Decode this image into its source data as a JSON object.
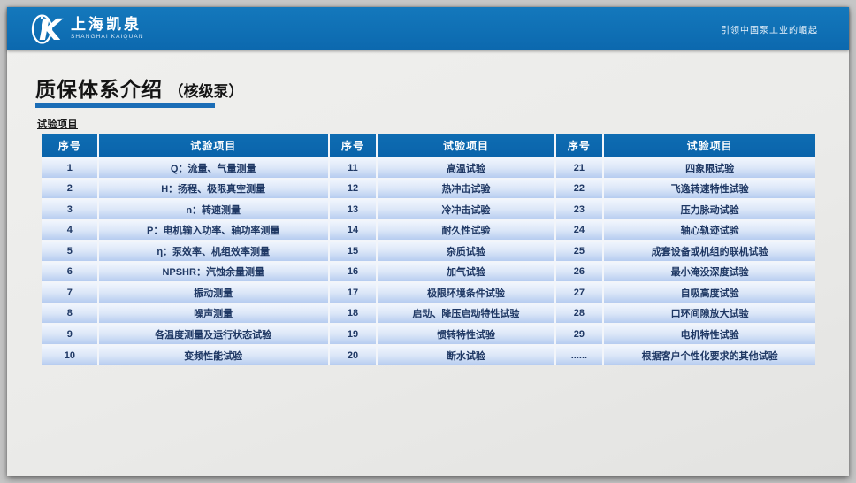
{
  "topbar": {
    "logo_cn": "上海凯泉",
    "logo_en": "SHANGHAI KAIQUAN",
    "slogan": "引领中国泵工业的崛起"
  },
  "title": {
    "main": "质保体系介绍",
    "suffix": "（核级泵）"
  },
  "section_label": "试验项目",
  "table": {
    "headers": [
      "序号",
      "试验项目",
      "序号",
      "试验项目",
      "序号",
      "试验项目"
    ],
    "rows": [
      [
        "1",
        "Q：流量、气量测量",
        "11",
        "高温试验",
        "21",
        "四象限试验"
      ],
      [
        "2",
        "H：扬程、极限真空测量",
        "12",
        "热冲击试验",
        "22",
        "飞逸转速特性试验"
      ],
      [
        "3",
        "n：转速测量",
        "13",
        "冷冲击试验",
        "23",
        "压力脉动试验"
      ],
      [
        "4",
        "P：电机输入功率、轴功率测量",
        "14",
        "耐久性试验",
        "24",
        "轴心轨迹试验"
      ],
      [
        "5",
        "η：泵效率、机组效率测量",
        "15",
        "杂质试验",
        "25",
        "成套设备或机组的联机试验"
      ],
      [
        "6",
        "NPSHR：汽蚀余量测量",
        "16",
        "加气试验",
        "26",
        "最小淹没深度试验"
      ],
      [
        "7",
        "振动测量",
        "17",
        "极限环境条件试验",
        "27",
        "自吸高度试验"
      ],
      [
        "8",
        "噪声测量",
        "18",
        "启动、降压启动特性试验",
        "28",
        "口环间隙放大试验"
      ],
      [
        "9",
        "各温度测量及运行状态试验",
        "19",
        "惯转特性试验",
        "29",
        "电机特性试验"
      ],
      [
        "10",
        "变频性能试验",
        "20",
        "断水试验",
        "......",
        "根据客户个性化要求的其他试验"
      ]
    ]
  },
  "colors": {
    "topbar_blue": "#0f6fb4",
    "table_header_blue": "#0a64ab",
    "accent_underline": "#1b6db6",
    "row_gradient_top": "#f0f5fd",
    "row_gradient_bottom": "#b6ccf0",
    "cell_text_navy": "#1f3864"
  }
}
